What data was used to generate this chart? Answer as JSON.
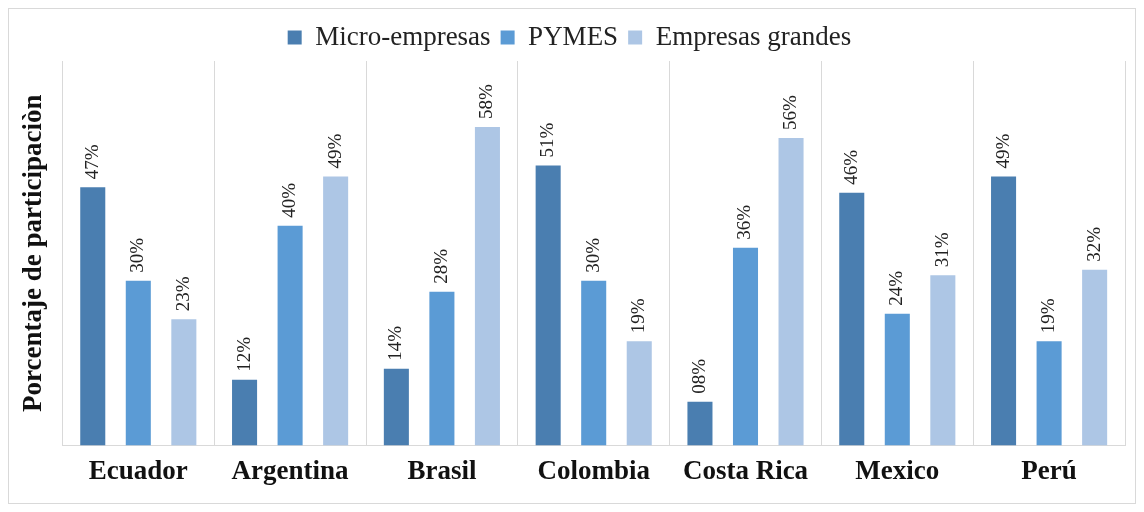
{
  "chart_data": {
    "type": "bar",
    "ylabel": "Porcentaje de participaciòn",
    "categories": [
      "Ecuador",
      "Argentina",
      "Brasil",
      "Colombia",
      "Costa Rica",
      "Mexico",
      "Perú"
    ],
    "series": [
      {
        "name": "Micro-empresas",
        "color": "#4a7eb0",
        "values": [
          47,
          12,
          14,
          51,
          8,
          46,
          49
        ],
        "value_labels": [
          "47%",
          "12%",
          "14%",
          "51%",
          "08%",
          "46%",
          "49%"
        ]
      },
      {
        "name": "PYMES",
        "color": "#5b9bd5",
        "values": [
          30,
          40,
          28,
          30,
          36,
          24,
          19
        ],
        "value_labels": [
          "30%",
          "40%",
          "28%",
          "30%",
          "36%",
          "24%",
          "19%"
        ]
      },
      {
        "name": "Empresas grandes",
        "color": "#adc6e5",
        "values": [
          23,
          49,
          58,
          19,
          56,
          31,
          32
        ],
        "value_labels": [
          "23%",
          "49%",
          "58%",
          "19%",
          "56%",
          "31%",
          "32%"
        ]
      }
    ],
    "legend": "top",
    "grid": "x"
  }
}
